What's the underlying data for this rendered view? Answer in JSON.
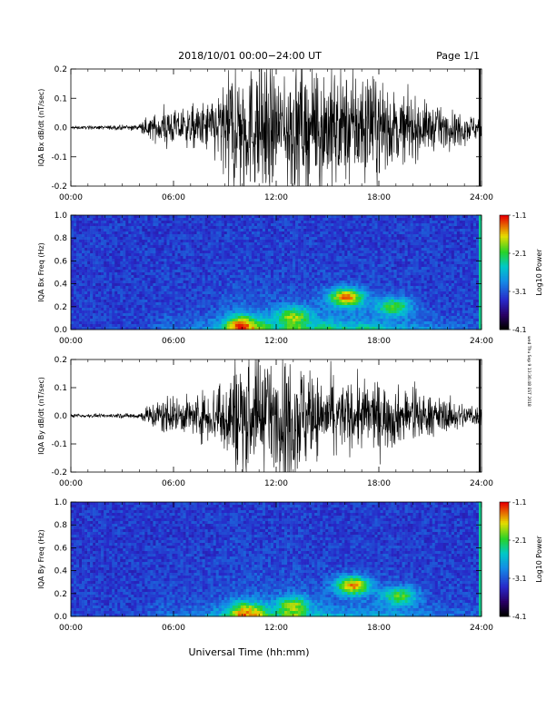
{
  "header": {
    "title": "2018/10/01   00:00−24:00 UT",
    "page": "Page 1/1"
  },
  "footer": {
    "xlabel": "Universal Time (hh:mm)"
  },
  "side_stamp": "wed Thu Sep 9 13:36:48 EST 2018",
  "colorbar": {
    "ticks": [
      "-1.1",
      "-2.1",
      "-3.1",
      "-4.1"
    ],
    "label": "Log10 Power"
  },
  "chart_data": [
    {
      "type": "line",
      "ylabel": "IQA Bx dB/dt (nT/sec)",
      "x_ticks": [
        "00:00",
        "06:00",
        "12:00",
        "18:00",
        "24:00"
      ],
      "y_ticks": [
        "0.2",
        "0.1",
        "0.0",
        "-0.1",
        "-0.2"
      ],
      "xlim_hours": [
        0,
        24
      ],
      "ylim": [
        -0.2,
        0.2
      ],
      "envelope": {
        "hours": [
          0,
          1,
          2,
          3,
          4,
          4.5,
          5,
          5.5,
          6,
          7,
          8,
          9,
          9.5,
          10,
          10.5,
          11,
          11.5,
          12,
          12.5,
          13,
          13.5,
          14,
          15,
          16,
          17,
          18,
          19,
          20,
          21,
          22,
          23,
          23.9
        ],
        "amplitude": [
          0.005,
          0.005,
          0.006,
          0.007,
          0.01,
          0.03,
          0.04,
          0.07,
          0.05,
          0.06,
          0.08,
          0.13,
          0.2,
          0.2,
          0.18,
          0.2,
          0.2,
          0.15,
          0.18,
          0.2,
          0.2,
          0.15,
          0.2,
          0.16,
          0.17,
          0.14,
          0.1,
          0.09,
          0.07,
          0.05,
          0.05,
          0.03
        ]
      }
    },
    {
      "type": "heatmap",
      "ylabel": "IQA Bx Freq (Hz)",
      "x_ticks": [
        "00:00",
        "06:00",
        "12:00",
        "18:00",
        "24:00"
      ],
      "y_ticks": [
        "1.0",
        "0.8",
        "0.6",
        "0.4",
        "0.2",
        "0.0"
      ],
      "xlim_hours": [
        0,
        24
      ],
      "ylim": [
        0,
        1
      ],
      "color_range": [
        -4.1,
        -1.1
      ],
      "hotspots": [
        {
          "t": 16.1,
          "f": 0.28,
          "level": 0.85
        },
        {
          "t": 18.9,
          "f": 0.2,
          "level": 0.55
        },
        {
          "t": 10.0,
          "f": 0.05,
          "level": 0.55
        },
        {
          "t": 13.0,
          "f": 0.12,
          "level": 0.5
        }
      ]
    },
    {
      "type": "line",
      "ylabel": "IQA By dB/dt (nT/sec)",
      "x_ticks": [
        "00:00",
        "06:00",
        "12:00",
        "18:00",
        "24:00"
      ],
      "y_ticks": [
        "0.2",
        "0.1",
        "0.0",
        "-0.1",
        "-0.2"
      ],
      "xlim_hours": [
        0,
        24
      ],
      "ylim": [
        -0.2,
        0.2
      ],
      "envelope": {
        "hours": [
          0,
          1,
          2,
          3,
          4,
          4.5,
          5,
          5.5,
          6,
          7,
          8,
          9,
          9.5,
          10,
          10.5,
          11,
          11.5,
          12,
          12.5,
          13,
          13.5,
          14,
          15,
          16,
          17,
          18,
          19,
          20,
          21,
          22,
          23,
          23.9
        ],
        "amplitude": [
          0.005,
          0.005,
          0.006,
          0.007,
          0.01,
          0.03,
          0.05,
          0.06,
          0.05,
          0.06,
          0.08,
          0.12,
          0.18,
          0.2,
          0.17,
          0.2,
          0.15,
          0.14,
          0.2,
          0.2,
          0.18,
          0.12,
          0.12,
          0.1,
          0.11,
          0.1,
          0.09,
          0.08,
          0.06,
          0.05,
          0.04,
          0.03
        ]
      }
    },
    {
      "type": "heatmap",
      "ylabel": "IQA By Freq (Hz)",
      "x_ticks": [
        "00:00",
        "06:00",
        "12:00",
        "18:00",
        "24:00"
      ],
      "y_ticks": [
        "1.0",
        "0.8",
        "0.6",
        "0.4",
        "0.2",
        "0.0"
      ],
      "xlim_hours": [
        0,
        24
      ],
      "ylim": [
        0,
        1
      ],
      "color_range": [
        -4.1,
        -1.1
      ],
      "hotspots": [
        {
          "t": 16.5,
          "f": 0.27,
          "level": 0.85
        },
        {
          "t": 19.2,
          "f": 0.18,
          "level": 0.55
        },
        {
          "t": 10.3,
          "f": 0.05,
          "level": 0.5
        },
        {
          "t": 13.0,
          "f": 0.1,
          "level": 0.45
        }
      ]
    }
  ]
}
